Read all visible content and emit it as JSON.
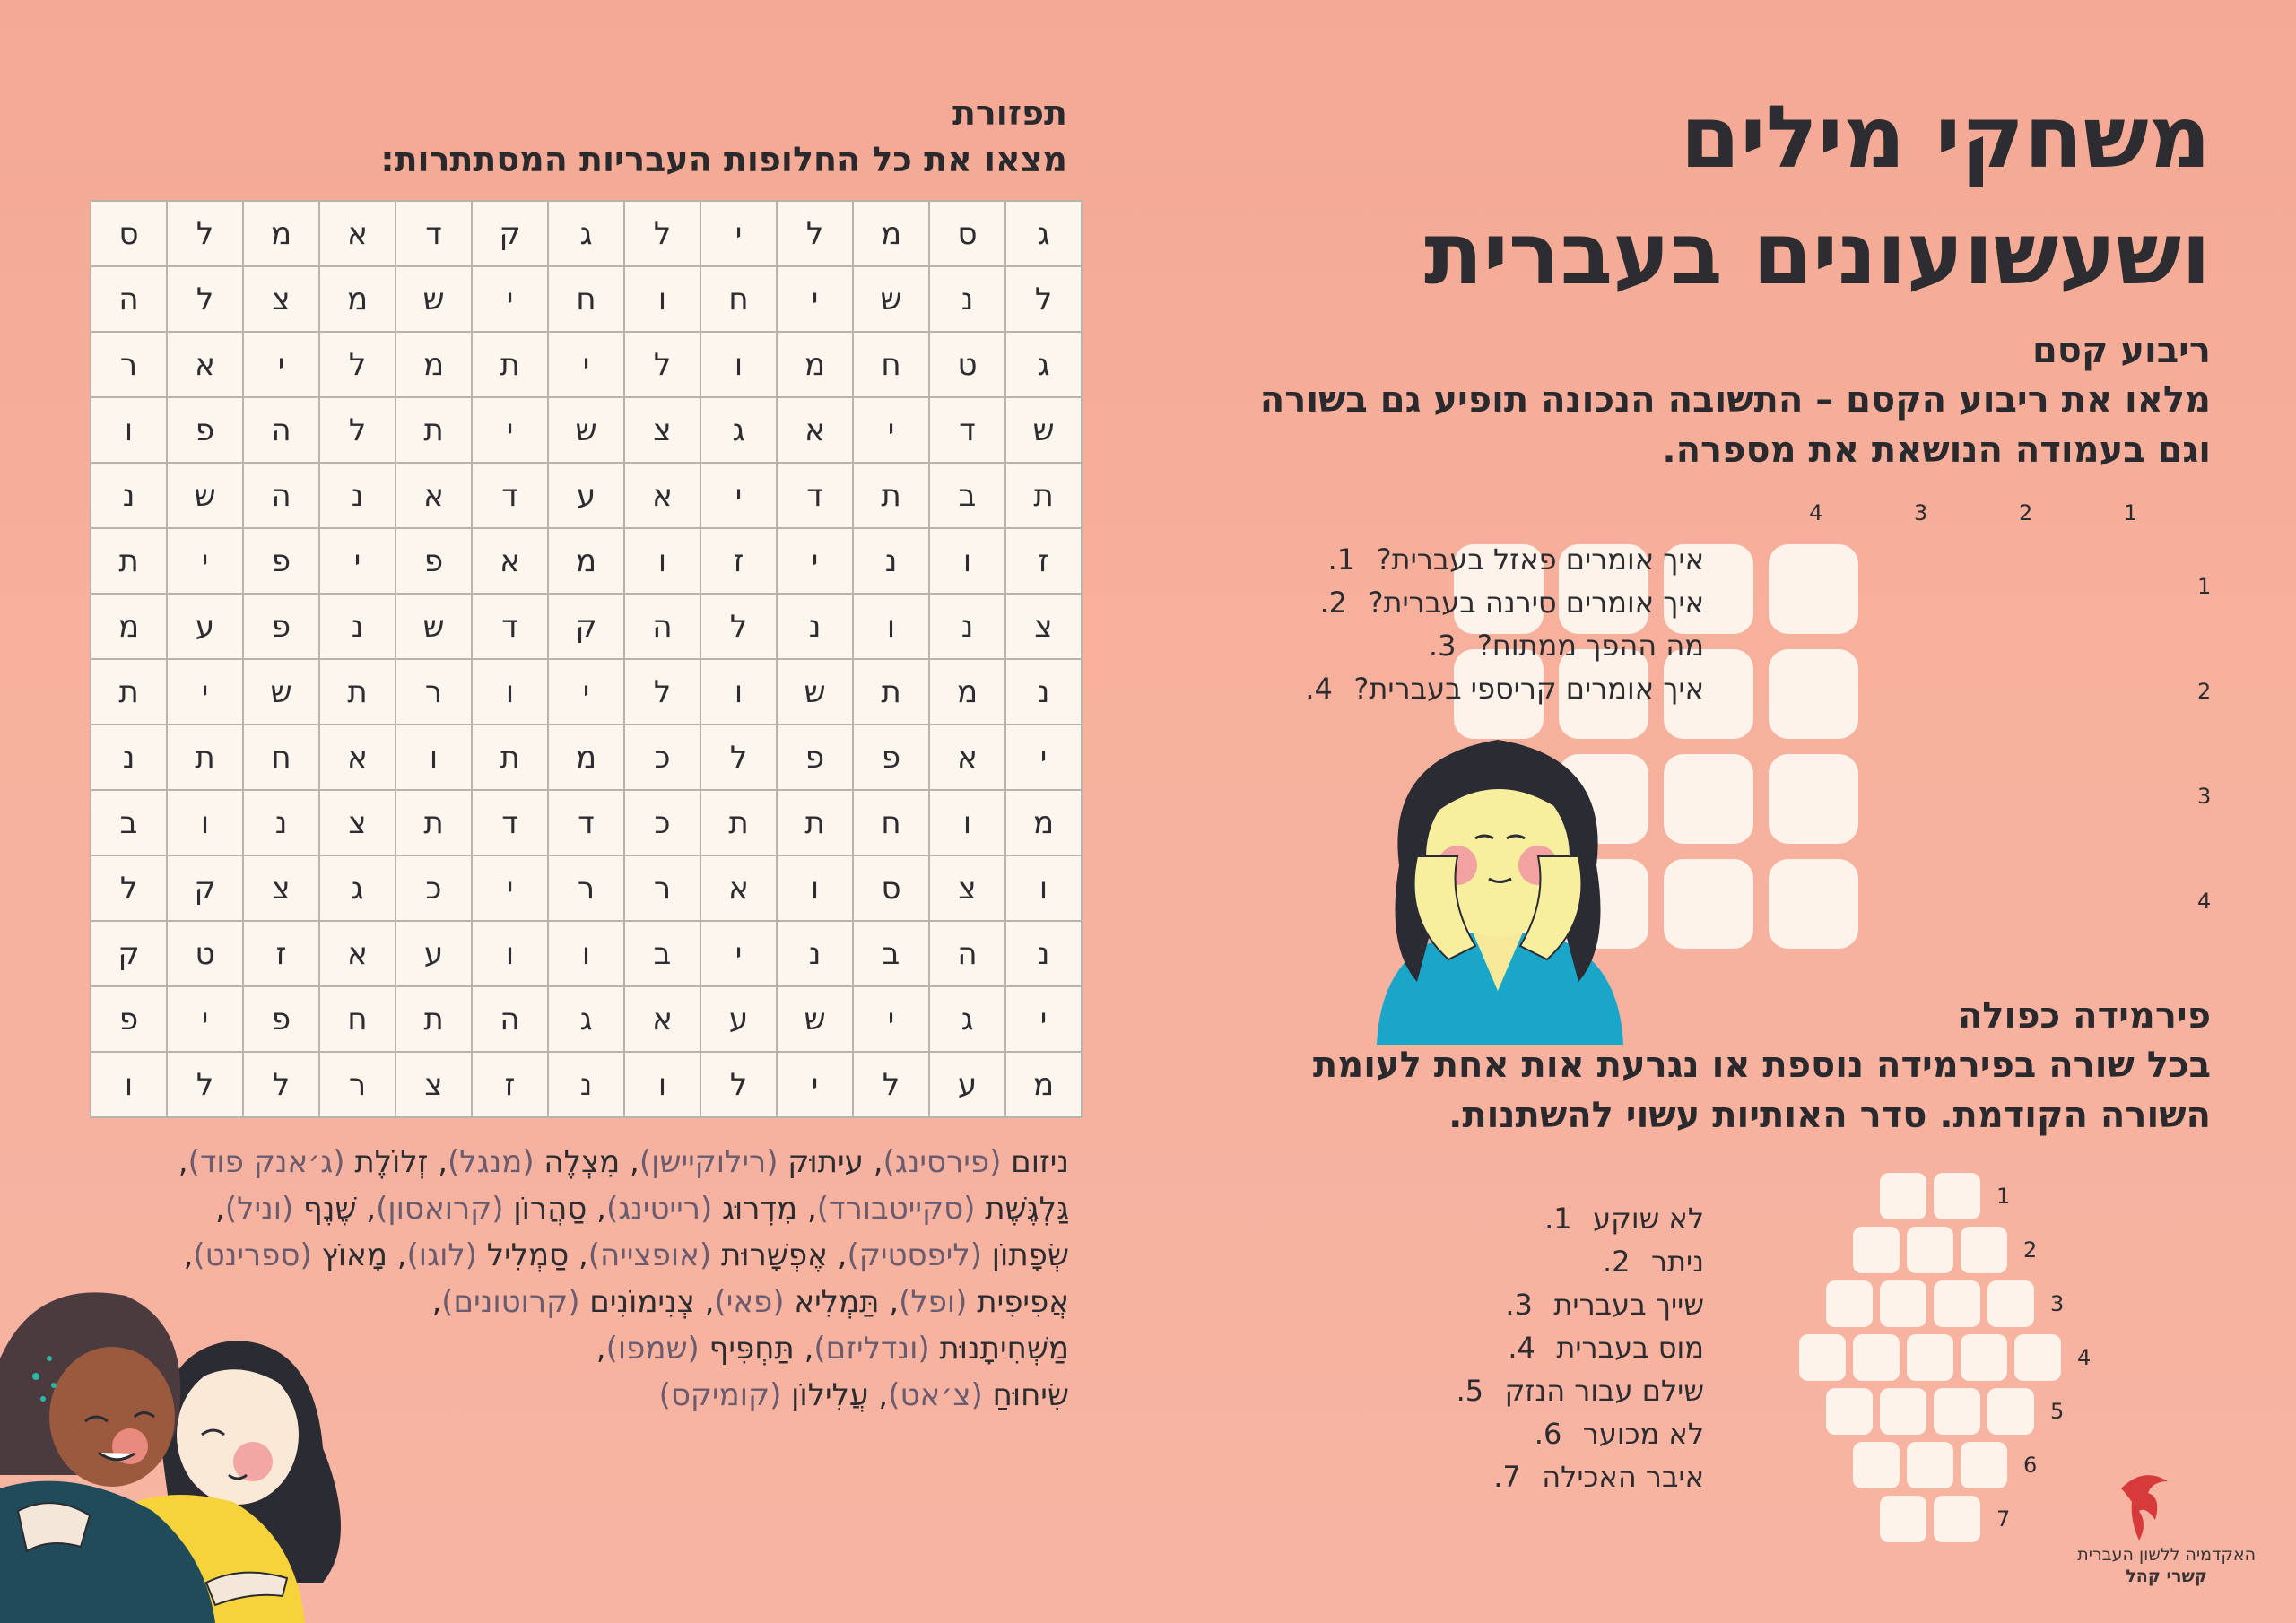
{
  "main_title": [
    "משחקי מילים",
    "ושעשועונים בעברית"
  ],
  "magic_square": {
    "title": "ריבוע קסם",
    "instructions": [
      "מלאו את ריבוע הקסם – התשובה הנכונה תופיע גם בשורה",
      "וגם בעמודה הנושאת את מספרה."
    ],
    "column_numbers": [
      "1",
      "2",
      "3",
      "4"
    ],
    "row_numbers": [
      "1",
      "2",
      "3",
      "4"
    ],
    "questions": [
      {
        "num": "1.",
        "text": "איך אומרים פאזל בעברית?"
      },
      {
        "num": "2.",
        "text": "איך אומרים סירנה בעברית?"
      },
      {
        "num": "3.",
        "text": "מה ההפך ממתוח?"
      },
      {
        "num": "4.",
        "text": "איך אומרים קריספי בעברית?"
      }
    ]
  },
  "pyramid": {
    "title": "פירמידה כפולה",
    "instructions": [
      "בכל שורה בפירמידה נוספת או נגרעת אות אחת לעומת",
      "השורה הקודמת. סדר האותיות עשוי להשתנות."
    ],
    "row_numbers": [
      "1",
      "2",
      "3",
      "4",
      "5",
      "6",
      "7"
    ],
    "row_lengths": [
      2,
      3,
      4,
      5,
      4,
      3,
      2
    ],
    "clues": [
      {
        "num": "1.",
        "text": "לא שוקע"
      },
      {
        "num": "2.",
        "text": "ניתר"
      },
      {
        "num": "3.",
        "text": "שייך בעברית"
      },
      {
        "num": "4.",
        "text": "מוס בעברית"
      },
      {
        "num": "5.",
        "text": "שילם עבור הנזק"
      },
      {
        "num": "6.",
        "text": "לא מכוער"
      },
      {
        "num": "7.",
        "text": "איבר האכילה"
      }
    ]
  },
  "word_search": {
    "title": "תפזורת",
    "subtitle": "מצאו את כל החלופות העבריות המסתתרות:",
    "grid": [
      [
        "ג",
        "ס",
        "מ",
        "ל",
        "י",
        "ל",
        "ג",
        "ק",
        "ד",
        "א",
        "מ",
        "ל",
        "ס"
      ],
      [
        "ל",
        "נ",
        "ש",
        "י",
        "ח",
        "ו",
        "ח",
        "י",
        "ש",
        "מ",
        "צ",
        "ל",
        "ה"
      ],
      [
        "ג",
        "ט",
        "ח",
        "מ",
        "ו",
        "ל",
        "י",
        "ת",
        "מ",
        "ל",
        "י",
        "א",
        "ר"
      ],
      [
        "ש",
        "ד",
        "י",
        "א",
        "ג",
        "צ",
        "ש",
        "י",
        "ת",
        "ל",
        "ה",
        "פ",
        "ו"
      ],
      [
        "ת",
        "ב",
        "ת",
        "ד",
        "י",
        "א",
        "ע",
        "ד",
        "א",
        "נ",
        "ה",
        "ש",
        "נ"
      ],
      [
        "ז",
        "ו",
        "נ",
        "י",
        "ז",
        "ו",
        "מ",
        "א",
        "פ",
        "י",
        "פ",
        "י",
        "ת"
      ],
      [
        "צ",
        "נ",
        "ו",
        "נ",
        "ל",
        "ה",
        "ק",
        "ד",
        "ש",
        "נ",
        "פ",
        "ע",
        "מ"
      ],
      [
        "נ",
        "מ",
        "ת",
        "ש",
        "ו",
        "ל",
        "י",
        "ו",
        "ר",
        "ת",
        "ש",
        "י",
        "ת"
      ],
      [
        "י",
        "א",
        "פ",
        "פ",
        "ל",
        "כ",
        "מ",
        "ת",
        "ו",
        "א",
        "ח",
        "ת",
        "נ"
      ],
      [
        "מ",
        "ו",
        "ח",
        "ת",
        "ת",
        "כ",
        "ד",
        "ד",
        "ת",
        "צ",
        "נ",
        "ו",
        "ב"
      ],
      [
        "ו",
        "צ",
        "ס",
        "ו",
        "א",
        "ר",
        "ר",
        "י",
        "כ",
        "ג",
        "צ",
        "ק",
        "ל"
      ],
      [
        "נ",
        "ה",
        "ב",
        "נ",
        "י",
        "ב",
        "ו",
        "ו",
        "ע",
        "א",
        "ז",
        "ט",
        "ק"
      ],
      [
        "י",
        "ג",
        "י",
        "ש",
        "ע",
        "א",
        "ג",
        "ה",
        "ת",
        "ח",
        "פ",
        "י",
        "פ"
      ],
      [
        "מ",
        "ע",
        "ל",
        "י",
        "ל",
        "ו",
        "נ",
        "ז",
        "צ",
        "ר",
        "ל",
        "ל",
        "ו"
      ]
    ],
    "answers": [
      [
        {
          "he": "ניזום",
          "en": "(פירסינג)"
        },
        {
          "he": "עיתוּק",
          "en": "(רילוקיישן)"
        },
        {
          "he": "מִצְלֶה",
          "en": "(מנגל)"
        },
        {
          "he": "זְלוֹלֶת",
          "en": "(ג׳אנק פוד)"
        }
      ],
      [
        {
          "he": "גַּלְגֶּשֶׁת",
          "en": "(סקייטבורד)"
        },
        {
          "he": "מִדְרוּג",
          "en": "(רייטינג)"
        },
        {
          "he": "סַהֲרוֹן",
          "en": "(קרואסון)"
        },
        {
          "he": "שֶׁנֶף",
          "en": "(וניל)"
        }
      ],
      [
        {
          "he": "שְׂפָתוֹן",
          "en": "(ליפסטיק)"
        },
        {
          "he": "אֶפְשָׁרוּת",
          "en": "(אופצייה)"
        },
        {
          "he": "סַמְלִיל",
          "en": "(לוגו)"
        },
        {
          "he": "מָאוֹץ",
          "en": "(ספרינט)"
        }
      ],
      [
        {
          "he": "אֲפִיפִית",
          "en": "(ופל)"
        },
        {
          "he": "תַּמְלִיא",
          "en": "(פאי)"
        },
        {
          "he": "צְנִימוֹנִים",
          "en": "(קרוטונים)"
        }
      ],
      [
        {
          "he": "מַשְׁחִיתָנוּת",
          "en": "(ונדליזם)"
        },
        {
          "he": "תַּחְפִּיף",
          "en": "(שמפו)"
        }
      ],
      [
        {
          "he": "שִׂיחוּחַ",
          "en": "(צ׳אט)"
        },
        {
          "he": "עֲלִילוֹן",
          "en": "(קומיקס)"
        }
      ]
    ]
  },
  "logo": {
    "org": "האקדמיה ללשון העברית",
    "dept": "קשרי קהל"
  },
  "colors": {
    "background": "#f6b09c",
    "cell_fill": "#fdf3ea",
    "text_dark": "#2d2c30",
    "logo_red": "#d63a3a"
  }
}
